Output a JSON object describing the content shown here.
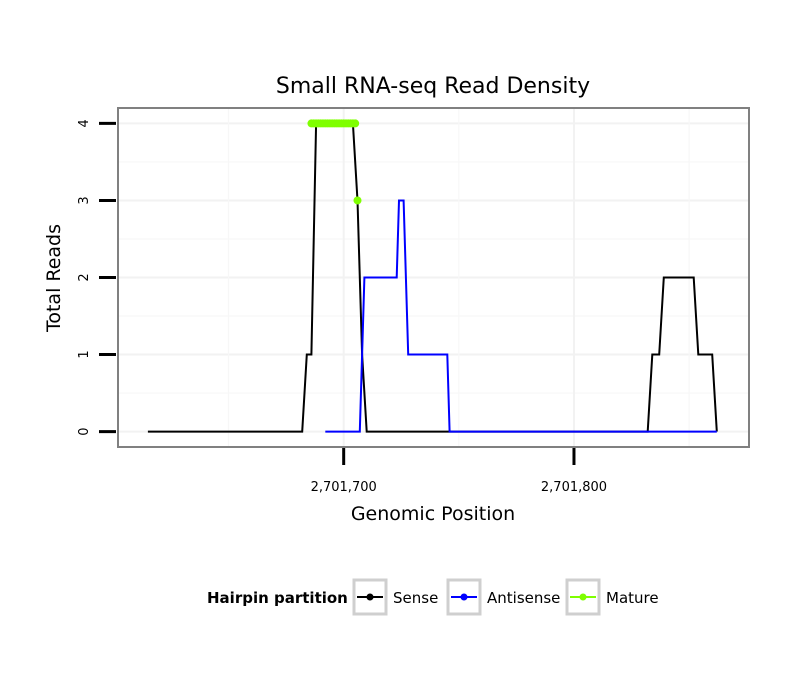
{
  "chart_data": {
    "type": "line",
    "title": "Small RNA-seq Read Density",
    "xlabel": "Genomic Position",
    "ylabel": "Total Reads",
    "xlim": [
      2701602,
      2701876
    ],
    "ylim": [
      -0.2,
      4.2
    ],
    "x_ticks": [
      {
        "value": 2701700,
        "label": "2,701,700"
      },
      {
        "value": 2701800,
        "label": "2,701,800"
      }
    ],
    "y_ticks": [
      {
        "value": 0,
        "label": "0"
      },
      {
        "value": 1,
        "label": "1"
      },
      {
        "value": 2,
        "label": "2"
      },
      {
        "value": 3,
        "label": "3"
      },
      {
        "value": 4,
        "label": "4"
      }
    ],
    "grid": true,
    "legend": {
      "title": "Hairpin partition",
      "position": "bottom",
      "entries": [
        {
          "label": "Sense",
          "color": "#000000"
        },
        {
          "label": "Antisense",
          "color": "#0000ff"
        },
        {
          "label": "Mature",
          "color": "#7fff00"
        }
      ]
    },
    "series": [
      {
        "name": "Sense",
        "color": "#000000",
        "kind": "line",
        "x": [
          2701615,
          2701682,
          2701684,
          2701686,
          2701688,
          2701704,
          2701706,
          2701708,
          2701710,
          2701832,
          2701834,
          2701837,
          2701839,
          2701852,
          2701854,
          2701860,
          2701862
        ],
        "y": [
          0,
          0,
          1,
          1,
          4,
          4,
          3,
          1,
          0,
          0,
          1,
          1,
          2,
          2,
          1,
          1,
          0
        ]
      },
      {
        "name": "Antisense",
        "color": "#0000ff",
        "kind": "line",
        "x": [
          2701692,
          2701707,
          2701709,
          2701723,
          2701724,
          2701726,
          2701728,
          2701745,
          2701746,
          2701862
        ],
        "y": [
          0,
          0,
          2,
          2,
          3,
          3,
          1,
          1,
          0,
          0
        ]
      },
      {
        "name": "Mature",
        "color": "#7fff00",
        "kind": "points",
        "x": [
          2701686,
          2701687,
          2701688,
          2701689,
          2701690,
          2701691,
          2701692,
          2701693,
          2701694,
          2701695,
          2701696,
          2701697,
          2701698,
          2701699,
          2701700,
          2701701,
          2701702,
          2701703,
          2701704,
          2701705,
          2701706
        ],
        "y": [
          4,
          4,
          4,
          4,
          4,
          4,
          4,
          4,
          4,
          4,
          4,
          4,
          4,
          4,
          4,
          4,
          4,
          4,
          4,
          4,
          3
        ]
      }
    ]
  }
}
